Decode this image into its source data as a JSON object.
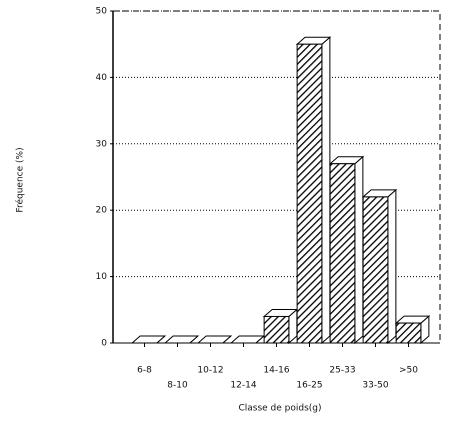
{
  "chart_data": {
    "type": "bar3d",
    "x_label": "Classe de poids(g)",
    "y_label": "Fréquence (%)",
    "categories": [
      "6-8",
      "8-10",
      "10-12",
      "12-14",
      "14-16",
      "16-25",
      "25-33",
      "33-50",
      ">50"
    ],
    "values": [
      0,
      0,
      0,
      0,
      4,
      45,
      27,
      22,
      3
    ],
    "color": "#000000",
    "ylim": [
      0,
      50
    ],
    "yticks": [
      0,
      10,
      20,
      30,
      40,
      50
    ],
    "grid": true
  }
}
